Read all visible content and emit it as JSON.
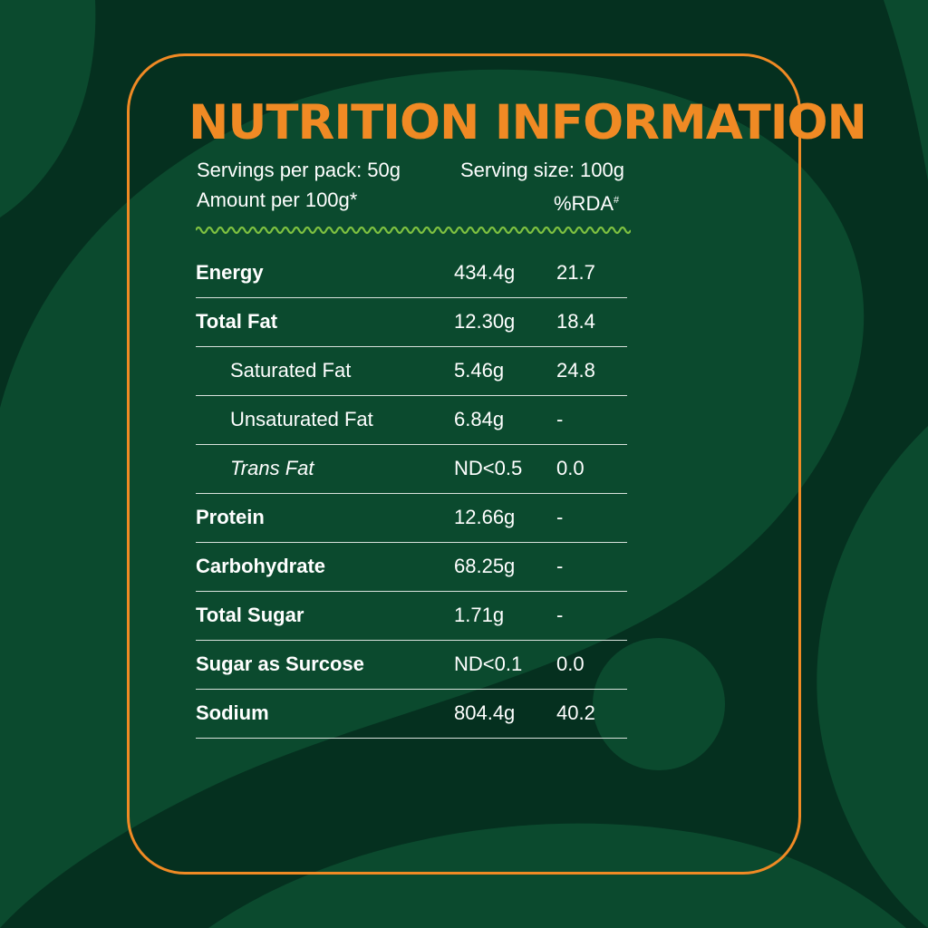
{
  "title": "NUTRITION INFORMATION",
  "servings_per_pack": "Servings per pack: 50g",
  "serving_size": "Serving size:  100g",
  "amount_per": "Amount per 100g*",
  "rda_header": "%RDA",
  "rda_header_mark": "#",
  "colors": {
    "background_dark": "#05301f",
    "background_mid": "#0b4a2e",
    "accent_orange": "#f08a24",
    "wave_green": "#7fc241",
    "text": "#ffffff"
  },
  "rows": [
    {
      "name": "Energy",
      "amount": "434.4g",
      "rda": "21.7",
      "style": "bold"
    },
    {
      "name": "Total Fat",
      "amount": "12.30g",
      "rda": "18.4",
      "style": "bold"
    },
    {
      "name": "Saturated Fat",
      "amount": "5.46g",
      "rda": "24.8",
      "style": "sub"
    },
    {
      "name": "Unsaturated Fat",
      "amount": "6.84g",
      "rda": "-",
      "style": "sub"
    },
    {
      "name": "Trans Fat",
      "amount": "ND<0.5",
      "rda": "0.0",
      "style": "sub italic"
    },
    {
      "name": "Protein",
      "amount": "12.66g",
      "rda": "-",
      "style": "bold"
    },
    {
      "name": "Carbohydrate",
      "amount": "68.25g",
      "rda": "-",
      "style": "bold"
    },
    {
      "name": "Total Sugar",
      "amount": "1.71g",
      "rda": "-",
      "style": "bold"
    },
    {
      "name": "Sugar as Surcose",
      "amount": "ND<0.1",
      "rda": "0.0",
      "style": "bold"
    },
    {
      "name": "Sodium",
      "amount": "804.4g",
      "rda": "40.2",
      "style": "bold"
    }
  ]
}
